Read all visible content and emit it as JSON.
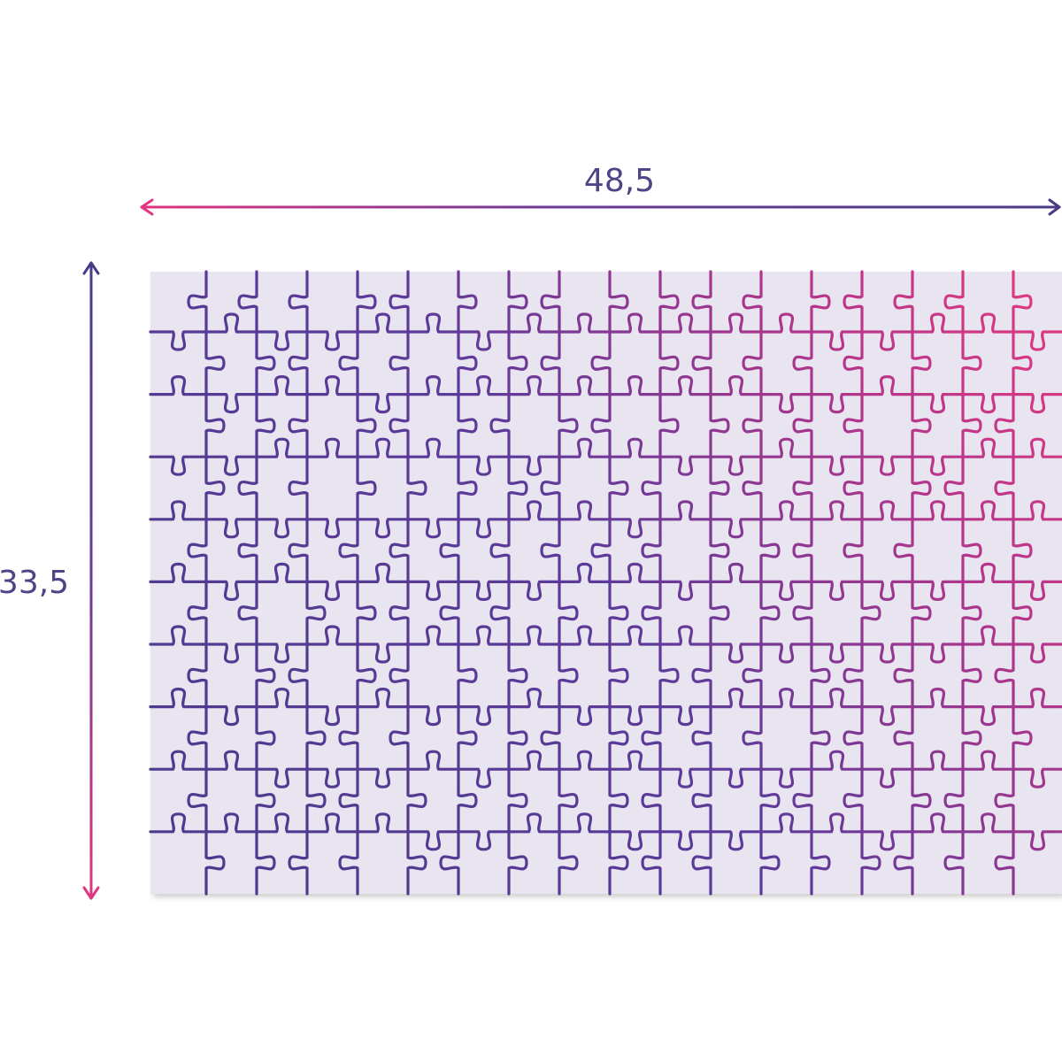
{
  "width_label": "48,5",
  "height_label": "33,5"
}
